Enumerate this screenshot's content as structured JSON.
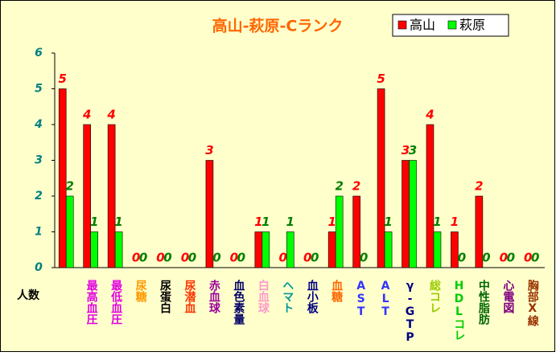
{
  "chart_data": {
    "type": "bar",
    "title": "高山-萩原-Cランク",
    "axis_label": "人数",
    "categories": [
      null,
      "最高血圧",
      "最低血圧",
      "尿糖",
      "尿蛋白",
      "尿潜血",
      "赤血球",
      "血色素量",
      "白血球",
      "ヘマト",
      "血小板",
      "血糖",
      "AST",
      "ALT",
      "γ-GTP",
      "総コレ",
      "HDLコレ",
      "中性脂肪",
      "心電図",
      "胸部X線"
    ],
    "label_colors": [
      null,
      "#e000e0",
      "#e000e0",
      "#ff9900",
      "#000000",
      "#ff3300",
      "#990099",
      "#000066",
      "#ff99cc",
      "#009999",
      "#000080",
      "#ff6600",
      "#3333ff",
      "#3333ff",
      "#000080",
      "#99cc00",
      "#00cc00",
      "#006600",
      "#800080",
      "#993300"
    ],
    "series": [
      {
        "name": "高山",
        "color": "#ff0000",
        "label_color": "#ff0000",
        "values": [
          5,
          4,
          4,
          0,
          0,
          0,
          3,
          0,
          1,
          0,
          0,
          1,
          2,
          5,
          3,
          4,
          1,
          2,
          0,
          0
        ]
      },
      {
        "name": "萩原",
        "color": "#00ff00",
        "label_color": "#008000",
        "values": [
          2,
          1,
          1,
          0,
          0,
          0,
          0,
          0,
          1,
          1,
          0,
          2,
          0,
          1,
          3,
          1,
          0,
          0,
          0,
          0
        ]
      }
    ],
    "ylim": [
      0,
      6
    ],
    "yticks": [
      0,
      1,
      2,
      3,
      4,
      5,
      6
    ],
    "grid": false,
    "legend": "top-right"
  }
}
